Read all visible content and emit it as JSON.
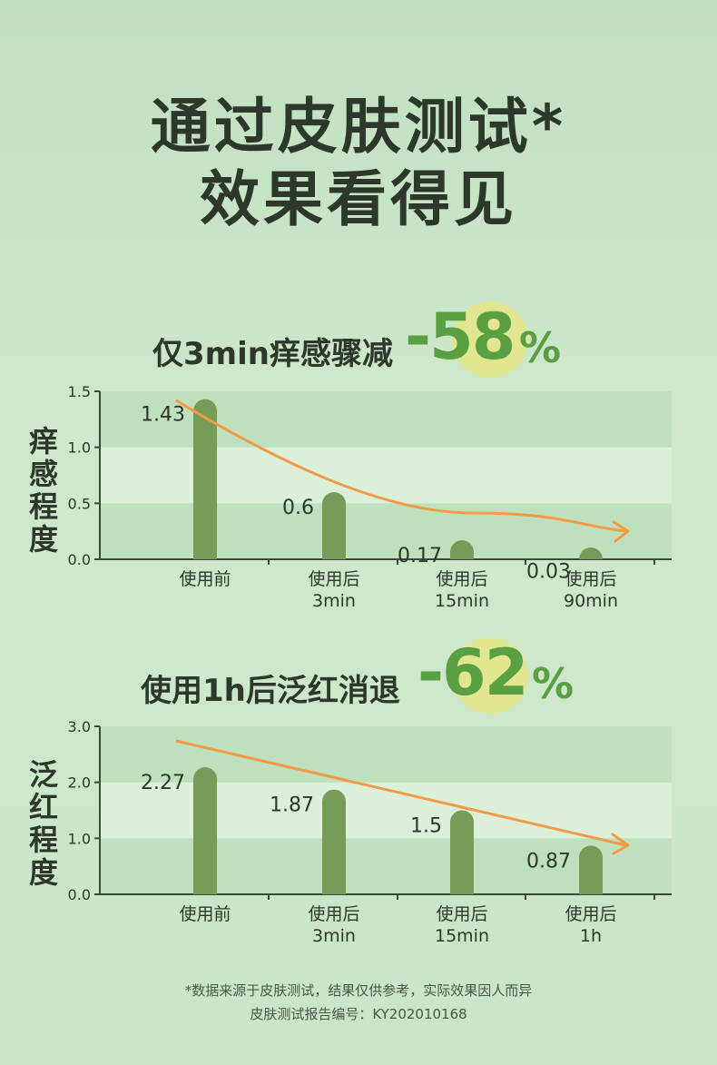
{
  "header": {
    "line1": "通过皮肤测试*",
    "line2": "效果看得见"
  },
  "colors": {
    "bar": "#759d57",
    "trend": "#f29a47",
    "band_dark": "#bfe0bd",
    "band_light": "#dcefd9",
    "badge_text": "#5b9f43",
    "badge_circle": "#e3e58a"
  },
  "chart_data": [
    {
      "type": "bar",
      "subtitle": "仅3min痒感骤减",
      "badge_value": "-58",
      "badge_unit": "%",
      "ylabel": "痒感程度",
      "ylim": [
        0,
        1.5
      ],
      "yticks": [
        "0.0",
        "0.5",
        "1.0",
        "1.5"
      ],
      "yticks_values": [
        0,
        0.5,
        1.0,
        1.5
      ],
      "categories": [
        [
          "使用前"
        ],
        [
          "使用后",
          "3min"
        ],
        [
          "使用后",
          "15min"
        ],
        [
          "使用后",
          "90min"
        ]
      ],
      "values": [
        1.43,
        0.6,
        0.17,
        0.03
      ],
      "labels": [
        "1.43",
        "0.6",
        "0.17",
        "0.03"
      ],
      "grid": true,
      "trend_arrow": true
    },
    {
      "type": "bar",
      "subtitle": "使用1h后泛红消退",
      "badge_value": "-62",
      "badge_unit": "%",
      "ylabel": "泛红程度",
      "ylim": [
        0,
        3.0
      ],
      "yticks": [
        "0.0",
        "1.0",
        "2.0",
        "3.0"
      ],
      "yticks_values": [
        0,
        1.0,
        2.0,
        3.0
      ],
      "categories": [
        [
          "使用前"
        ],
        [
          "使用后",
          "3min"
        ],
        [
          "使用后",
          "15min"
        ],
        [
          "使用后",
          "1h"
        ]
      ],
      "values": [
        2.27,
        1.87,
        1.5,
        0.87
      ],
      "labels": [
        "2.27",
        "1.87",
        "1.5",
        "0.87"
      ],
      "grid": true,
      "trend_arrow": true
    }
  ],
  "footer": {
    "note": "*数据来源于皮肤测试，结果仅供参考，实际效果因人而异",
    "report": "皮肤测试报告编号：KY202010168"
  }
}
